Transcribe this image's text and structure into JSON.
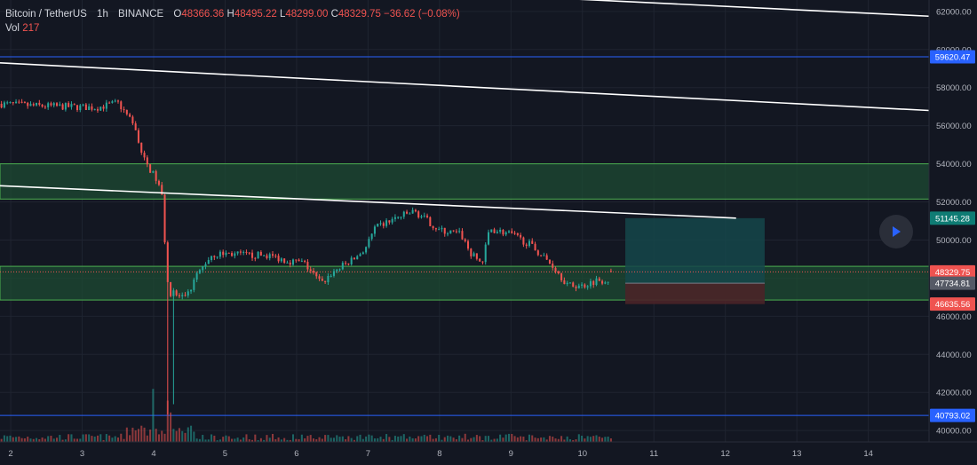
{
  "header": {
    "symbol": "Bitcoin / TetherUS",
    "interval": "1h",
    "exchange": "BINANCE",
    "ohlc": {
      "o_label": "O",
      "o": "48366.36",
      "h_label": "H",
      "h": "48495.22",
      "l_label": "L",
      "l": "48299.00",
      "c_label": "C",
      "c": "48329.75",
      "change": "−36.62 (−0.08%)"
    },
    "volume_label": "Vol",
    "volume_value": "217"
  },
  "colors": {
    "background": "#131722",
    "up": "#26a69a",
    "down": "#ef5350",
    "zone_fill": "#1e4b33",
    "zone_border": "#4caf50",
    "target_fill": "#15464a",
    "stop_fill": "#4a2428",
    "trendline": "#ffffff",
    "hline": "#2962ff"
  },
  "chart_data": {
    "type": "candlestick",
    "symbol": "Bitcoin / TetherUS",
    "timeframe": "1h",
    "x_ticks": [
      "2",
      "3",
      "4",
      "5",
      "6",
      "7",
      "8",
      "9",
      "10",
      "11",
      "12",
      "13",
      "14"
    ],
    "y_ticks": [
      "62000.00",
      "60000.00",
      "58000.00",
      "56000.00",
      "54000.00",
      "52000.00",
      "50000.00",
      "48000.00",
      "46000.00",
      "44000.00",
      "42000.00",
      "40000.00"
    ],
    "xlim": [
      1.85,
      14.85
    ],
    "ylim": [
      39400,
      62600
    ],
    "price_path": [
      [
        1.85,
        57150
      ],
      [
        2.3,
        57050
      ],
      [
        2.8,
        57000
      ],
      [
        3.2,
        56950
      ],
      [
        3.5,
        57200
      ],
      [
        3.6,
        56700
      ],
      [
        3.75,
        55800
      ],
      [
        3.85,
        54300
      ],
      [
        3.95,
        53700
      ],
      [
        4.05,
        53100
      ],
      [
        4.12,
        52200
      ],
      [
        4.2,
        47500
      ],
      [
        4.3,
        47100
      ],
      [
        4.45,
        46900
      ],
      [
        4.6,
        48100
      ],
      [
        4.8,
        49200
      ],
      [
        5.0,
        49300
      ],
      [
        5.3,
        49200
      ],
      [
        5.6,
        49200
      ],
      [
        5.9,
        48900
      ],
      [
        6.1,
        48800
      ],
      [
        6.35,
        47700
      ],
      [
        6.5,
        48300
      ],
      [
        6.8,
        49000
      ],
      [
        6.95,
        49500
      ],
      [
        7.1,
        50600
      ],
      [
        7.3,
        51000
      ],
      [
        7.5,
        51300
      ],
      [
        7.65,
        51500
      ],
      [
        7.8,
        51100
      ],
      [
        8.0,
        50500
      ],
      [
        8.3,
        50300
      ],
      [
        8.45,
        49200
      ],
      [
        8.6,
        48800
      ],
      [
        8.7,
        50600
      ],
      [
        9.0,
        50300
      ],
      [
        9.25,
        49800
      ],
      [
        9.4,
        49300
      ],
      [
        9.6,
        48600
      ],
      [
        9.8,
        47600
      ],
      [
        10.0,
        47600
      ],
      [
        10.2,
        47900
      ],
      [
        10.35,
        47900
      ],
      [
        10.42,
        48330
      ]
    ],
    "volume_spikes": [
      {
        "x": 4.0,
        "value": 13500
      },
      {
        "x": 4.2,
        "value": 10500
      },
      {
        "x": 4.25,
        "value": 7500
      }
    ],
    "last_candle": {
      "open": 48366.36,
      "high": 48495.22,
      "low": 48299.0,
      "close": 48329.75,
      "volume": 217
    },
    "zones": [
      {
        "y1": 52150,
        "y2": 54000
      },
      {
        "y1": 46850,
        "y2": 48620
      }
    ],
    "trendlines": [
      {
        "from": [
          6.3,
          63300
        ],
        "to": [
          14.85,
          61750
        ]
      },
      {
        "from": [
          1.85,
          59300
        ],
        "to": [
          14.85,
          56800
        ]
      },
      {
        "from": [
          1.85,
          52850
        ],
        "to": [
          12.15,
          51150
        ]
      }
    ],
    "position": {
      "x_start": 10.6,
      "x_end": 12.55,
      "entry": 47734.81,
      "target": 51145.28,
      "stop": 46635.56
    },
    "horizontal_lines": [
      59620.47,
      40793.02
    ],
    "last_price": 48329.75,
    "price_labels": [
      {
        "text": "59620.47",
        "value": 59620.47,
        "role": "hline"
      },
      {
        "text": "51145.28",
        "value": 51145.28,
        "role": "target"
      },
      {
        "text": "48329.75",
        "value": 48329.75,
        "role": "last"
      },
      {
        "text": "47734.81",
        "value": 47734.81,
        "role": "entry"
      },
      {
        "text": "46635.56",
        "value": 46635.56,
        "role": "stop"
      },
      {
        "text": "40793.02",
        "value": 40793.02,
        "role": "hline"
      }
    ]
  },
  "controls": {
    "play_icon": "play-icon"
  }
}
